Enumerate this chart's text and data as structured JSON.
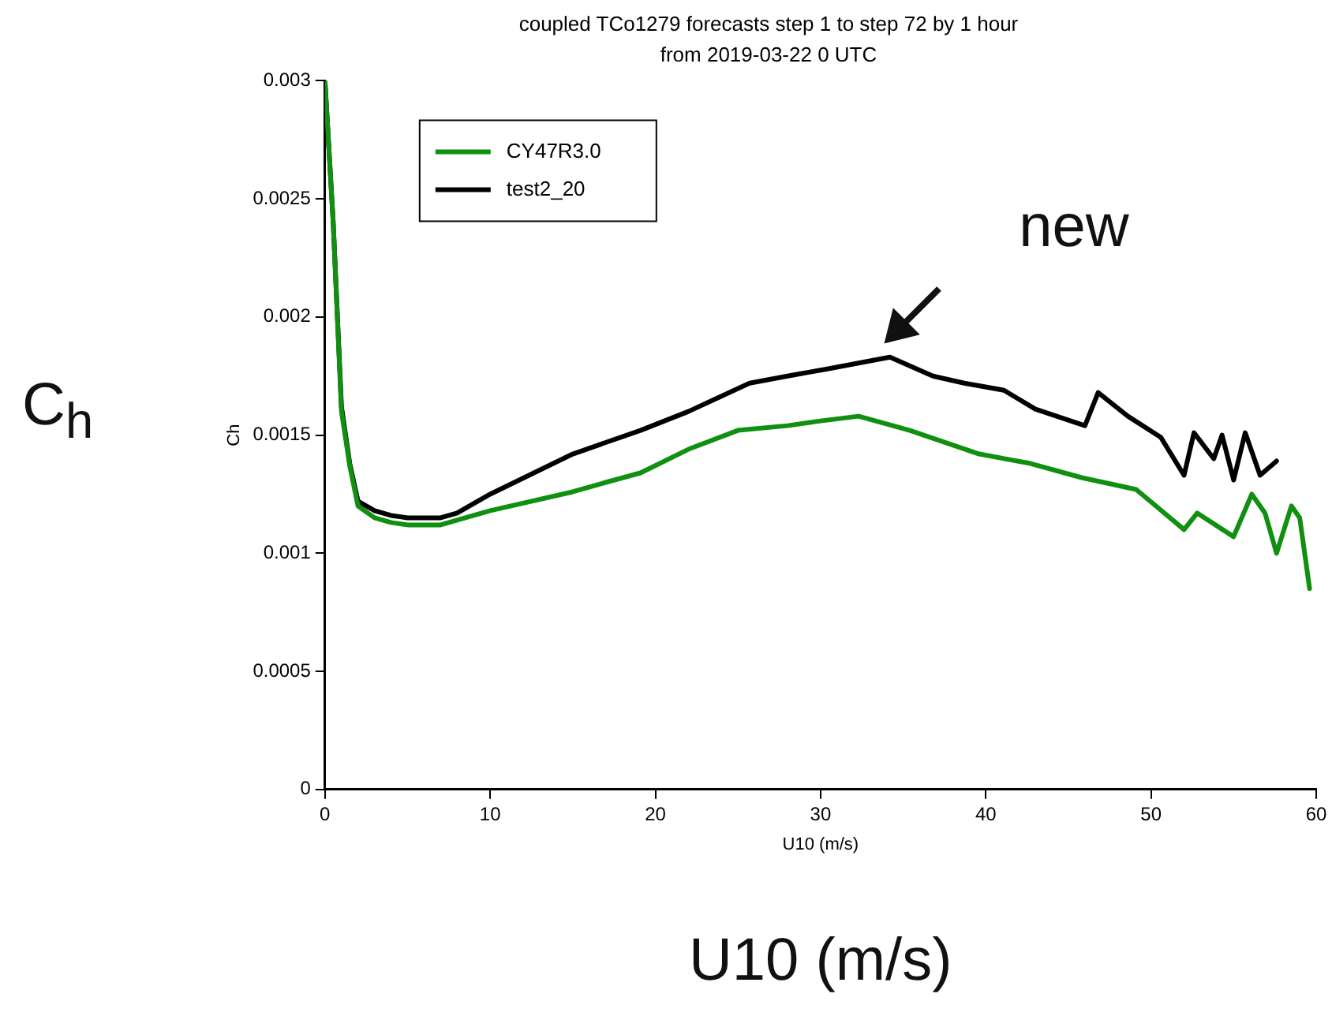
{
  "chart_data": {
    "type": "line",
    "title": "coupled TCo1279 forecasts step 1 to step 72 by 1 hour",
    "subtitle": "from 2019-03-22 0 UTC",
    "xlabel": "U10 (m/s)",
    "ylabel": "Ch",
    "xlim": [
      0,
      60
    ],
    "xticks": [
      0,
      10,
      20,
      30,
      40,
      50,
      60
    ],
    "ylim": [
      0,
      0.003
    ],
    "yticks": [
      0,
      0.0005,
      0.001,
      0.0015,
      0.002,
      0.0025,
      0.003
    ],
    "grid": false,
    "legend": "top left",
    "marker": "none",
    "line_style": "solid",
    "annotations": [
      "C$_{h}$",
      "U10 (m/s)",
      "new"
    ],
    "series": [
      {
        "name": "CY47R3.0",
        "color": "#109010",
        "x": [
          0,
          0.5,
          1,
          1.5,
          2,
          3,
          4,
          5,
          7,
          8,
          10,
          15,
          17,
          19.1,
          22,
          25,
          28,
          30,
          32.3,
          35.4,
          39.6,
          42.7,
          45.8,
          49.1,
          50.3,
          52,
          52.8,
          55,
          56.1,
          56.9,
          57.6,
          58.5,
          59,
          59.5,
          59.6
        ],
        "values": [
          0.003,
          0.0024,
          0.0016,
          0.00137,
          0.0012,
          0.00115,
          0.00113,
          0.00112,
          0.00112,
          0.00114,
          0.00118,
          0.00126,
          0.0013,
          0.00134,
          0.00144,
          0.00152,
          0.00154,
          0.00156,
          0.00158,
          0.00152,
          0.00142,
          0.00138,
          0.00132,
          0.00127,
          0.0012,
          0.0011,
          0.00117,
          0.00107,
          0.00125,
          0.00117,
          0.001,
          0.0012,
          0.00115,
          0.0009,
          0.00085
        ]
      },
      {
        "name": "test2_20",
        "color": "#000000",
        "x": [
          0,
          0.5,
          1,
          1.5,
          2,
          3,
          4,
          5,
          7,
          8,
          10,
          15,
          19.1,
          22,
          25.7,
          28,
          30.4,
          34.2,
          36.8,
          38.7,
          41.1,
          43,
          46,
          46.8,
          48.6,
          50.6,
          52,
          52.6,
          53.8,
          54.3,
          55,
          55.7,
          56.6,
          57.6
        ],
        "values": [
          0.003,
          0.0024,
          0.00162,
          0.00138,
          0.00122,
          0.00118,
          0.00116,
          0.00115,
          0.00115,
          0.00117,
          0.00125,
          0.00142,
          0.00152,
          0.0016,
          0.00172,
          0.00175,
          0.00178,
          0.00183,
          0.00175,
          0.00172,
          0.00169,
          0.00161,
          0.00154,
          0.00168,
          0.00158,
          0.00149,
          0.00133,
          0.00151,
          0.0014,
          0.0015,
          0.00131,
          0.00151,
          0.00133,
          0.00139
        ]
      }
    ]
  }
}
